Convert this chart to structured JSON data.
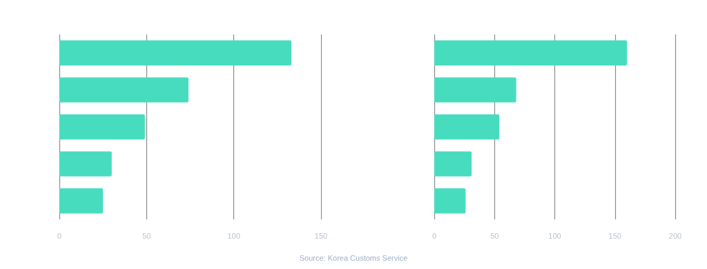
{
  "chart_data": [
    {
      "type": "bar",
      "orientation": "horizontal",
      "categories": [
        null,
        null,
        null,
        null,
        null
      ],
      "values": [
        133,
        74,
        49,
        30,
        25
      ],
      "color": "#48dcbf",
      "xlim": [
        0,
        150
      ],
      "xticks": [
        0,
        50,
        100,
        150
      ],
      "grid": "x",
      "tick_labels": "x"
    },
    {
      "type": "bar",
      "orientation": "horizontal",
      "categories": [
        null,
        null,
        null,
        null,
        null
      ],
      "values": [
        160,
        68,
        54,
        31,
        26
      ],
      "color": "#48dcbf",
      "xlim": [
        0,
        200
      ],
      "xticks": [
        0,
        50,
        100,
        150,
        200
      ],
      "grid": "x",
      "tick_labels": "x",
      "annotations": [
        "Source: Korea Customs Service"
      ]
    }
  ]
}
